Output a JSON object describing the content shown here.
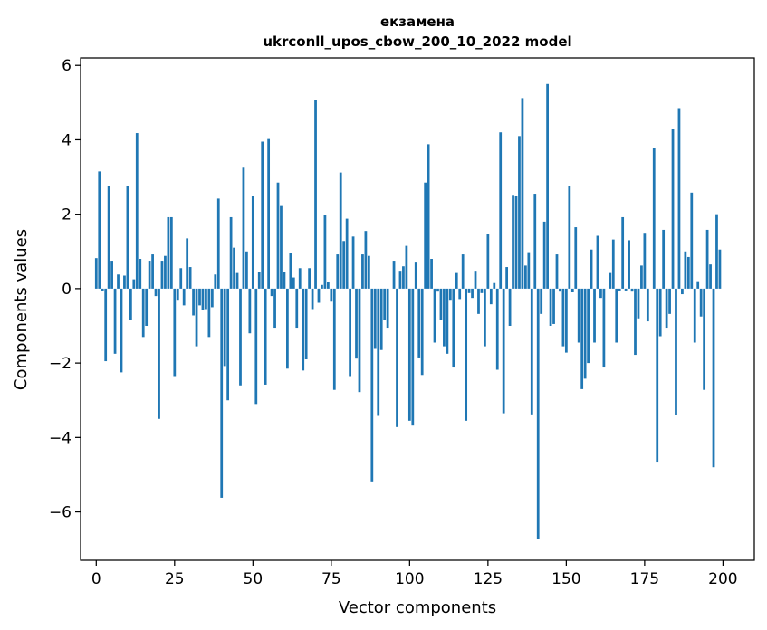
{
  "chart_data": {
    "type": "bar",
    "title": "екзамена",
    "subtitle": "ukrconll_upos_cbow_200_10_2022 model",
    "xlabel": "Vector components",
    "ylabel": "Components values",
    "xlim": [
      -5,
      210
    ],
    "ylim": [
      -7.3,
      6.2
    ],
    "x_ticks": [
      0,
      25,
      50,
      75,
      100,
      125,
      150,
      175,
      200
    ],
    "x_tick_labels": [
      "0",
      "25",
      "50",
      "75",
      "100",
      "125",
      "150",
      "175",
      "200"
    ],
    "y_ticks": [
      -6,
      -4,
      -2,
      0,
      2,
      4,
      6
    ],
    "y_tick_labels": [
      "−6",
      "−4",
      "−2",
      "0",
      "2",
      "4",
      "6"
    ],
    "bar_color": "#1f77b4",
    "grid": false,
    "values": [
      0.82,
      3.15,
      -0.05,
      -1.95,
      2.75,
      0.75,
      -1.75,
      0.38,
      -2.25,
      0.35,
      2.75,
      -0.85,
      0.25,
      4.18,
      0.8,
      -1.3,
      -1.0,
      0.75,
      0.92,
      -0.2,
      -3.5,
      0.75,
      0.88,
      1.92,
      1.92,
      -2.35,
      -0.3,
      0.55,
      -0.45,
      1.35,
      0.58,
      -0.72,
      -1.55,
      -0.45,
      -0.58,
      -0.55,
      -1.3,
      -0.5,
      0.38,
      2.42,
      -5.62,
      -2.08,
      -3.0,
      1.92,
      1.1,
      0.42,
      -2.6,
      3.25,
      1.0,
      -1.2,
      2.5,
      -3.1,
      0.45,
      3.95,
      -2.58,
      4.02,
      -0.2,
      -1.05,
      2.85,
      2.22,
      0.45,
      -2.15,
      0.95,
      0.3,
      -1.05,
      0.55,
      -2.2,
      -1.9,
      0.55,
      -0.55,
      5.08,
      -0.38,
      0.1,
      1.98,
      0.18,
      -0.35,
      -2.72,
      0.92,
      3.12,
      1.28,
      1.88,
      -2.35,
      1.4,
      -1.88,
      -2.78,
      0.92,
      1.55,
      0.88,
      -5.18,
      -1.62,
      -3.42,
      -1.65,
      -0.85,
      -1.05,
      0.0,
      0.75,
      -3.72,
      0.48,
      0.6,
      1.15,
      -3.55,
      -3.68,
      0.7,
      -1.85,
      -2.32,
      2.85,
      3.88,
      0.8,
      -1.45,
      -0.08,
      -0.85,
      -1.55,
      -1.75,
      -0.3,
      -2.12,
      0.42,
      -0.28,
      0.92,
      -3.55,
      -0.12,
      -0.25,
      0.48,
      -0.68,
      -0.12,
      -1.55,
      1.48,
      -0.42,
      0.15,
      -2.18,
      4.2,
      -3.35,
      0.58,
      -1.0,
      2.52,
      2.48,
      4.1,
      5.12,
      0.62,
      0.98,
      -3.38,
      2.55,
      -6.72,
      -0.68,
      1.8,
      5.5,
      -1.0,
      -0.95,
      0.92,
      -0.08,
      -1.55,
      -1.72,
      2.75,
      -0.1,
      1.65,
      -1.45,
      -2.7,
      -2.42,
      -2.0,
      1.05,
      -1.45,
      1.42,
      -0.25,
      -2.12,
      0.0,
      0.42,
      1.32,
      -1.45,
      -0.05,
      1.92,
      -0.05,
      1.3,
      -0.08,
      -1.78,
      -0.8,
      0.62,
      1.5,
      -0.88,
      0.0,
      3.78,
      -4.65,
      -1.28,
      1.58,
      -1.05,
      -0.68,
      4.28,
      -3.4,
      4.85,
      -0.15,
      1.0,
      0.85,
      2.58,
      -1.45,
      0.2,
      -0.75,
      -2.72,
      1.58,
      0.65,
      -4.8,
      2.0,
      1.05
    ]
  }
}
